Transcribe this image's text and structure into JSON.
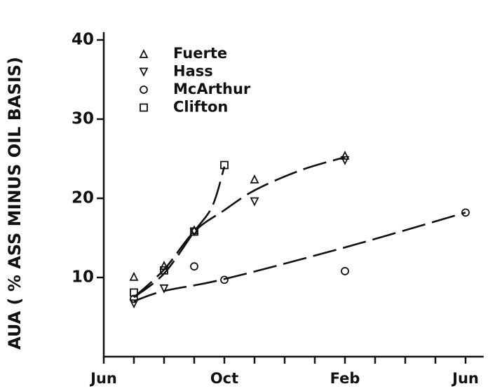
{
  "chart_data": {
    "type": "scatter",
    "y_label": "AUA ( % ASS MINUS OIL BASIS)",
    "xlim": [
      0,
      12.6
    ],
    "ylim": [
      0,
      41
    ],
    "xticks": [
      {
        "value": 0,
        "label": "Jun"
      },
      {
        "value": 4,
        "label": "Oct"
      },
      {
        "value": 8,
        "label": "Feb"
      },
      {
        "value": 12,
        "label": "Jun"
      }
    ],
    "minor_xticks": [
      1,
      2,
      3,
      5,
      6,
      7,
      9,
      10,
      11
    ],
    "yticks": [
      10,
      20,
      30,
      40
    ],
    "legend": "upper left",
    "series": [
      {
        "name": "Fuerte",
        "marker": "triangle-up",
        "color": "#111",
        "x": [
          1,
          2,
          3,
          5,
          8
        ],
        "values": [
          10.1,
          11.5,
          16,
          22.4,
          25.4
        ]
      },
      {
        "name": "Hass",
        "marker": "triangle-down",
        "color": "#111",
        "x": [
          1,
          2,
          3,
          5,
          8
        ],
        "values": [
          6.7,
          8.6,
          15.8,
          19.6,
          24.8
        ]
      },
      {
        "name": "McArthur",
        "marker": "circle",
        "color": "#111",
        "x": [
          1,
          3,
          4,
          8,
          12
        ],
        "values": [
          7.3,
          11.4,
          9.7,
          10.8,
          18.2
        ]
      },
      {
        "name": "Clifton",
        "marker": "square",
        "color": "#111",
        "x": [
          1,
          2,
          3,
          4
        ],
        "values": [
          8.1,
          10.9,
          15.8,
          24.2
        ]
      }
    ],
    "fit_curves": [
      {
        "x": [
          1,
          2,
          3,
          3.6,
          4
        ],
        "values": [
          7.5,
          10.5,
          15.8,
          19,
          24
        ]
      },
      {
        "x": [
          1,
          2,
          3,
          4,
          5,
          6.5,
          8
        ],
        "values": [
          7.5,
          11,
          15.8,
          18.5,
          21,
          23.5,
          25.2
        ]
      },
      {
        "x": [
          1,
          2,
          4,
          8,
          12
        ],
        "values": [
          7,
          8.3,
          9.8,
          13.8,
          18.2
        ]
      }
    ]
  }
}
